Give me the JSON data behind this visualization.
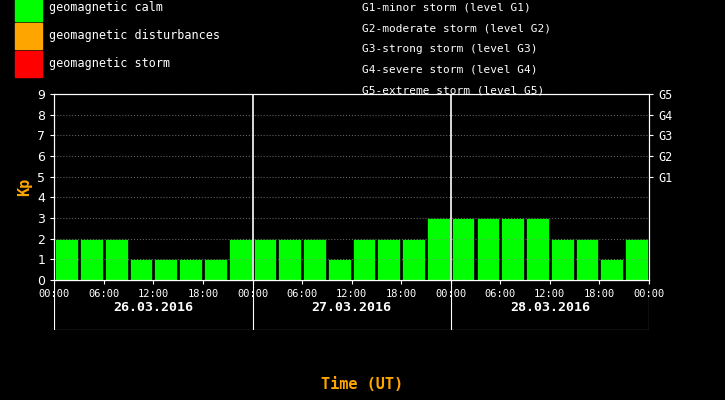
{
  "bg_color": "#000000",
  "bar_color_calm": "#00ff00",
  "bar_color_disturb": "#ffa500",
  "bar_color_storm": "#ff0000",
  "text_color": "#ffffff",
  "orange_color": "#ffa500",
  "ylabel_color": "#ffa500",
  "xlabel": "Time (UT)",
  "ylabel": "Kp",
  "ylim": [
    0,
    9
  ],
  "yticks": [
    0,
    1,
    2,
    3,
    4,
    5,
    6,
    7,
    8,
    9
  ],
  "right_labels": [
    "G1",
    "G2",
    "G3",
    "G4",
    "G5"
  ],
  "right_label_yvals": [
    5,
    6,
    7,
    8,
    9
  ],
  "dates": [
    "26.03.2016",
    "27.03.2016",
    "28.03.2016"
  ],
  "kp_values": [
    [
      2,
      2,
      2,
      1,
      1,
      1,
      1,
      2
    ],
    [
      2,
      2,
      2,
      1,
      2,
      2,
      2,
      3
    ],
    [
      3,
      3,
      3,
      3,
      2,
      2,
      1,
      2
    ]
  ],
  "legend_items": [
    {
      "label": "geomagnetic calm",
      "color": "#00ff00"
    },
    {
      "label": "geomagnetic disturbances",
      "color": "#ffa500"
    },
    {
      "label": "geomagnetic storm",
      "color": "#ff0000"
    }
  ],
  "right_legend_lines": [
    "G1-minor storm (level G1)",
    "G2-moderate storm (level G2)",
    "G3-strong storm (level G3)",
    "G4-severe storm (level G4)",
    "G5-extreme storm (level G5)"
  ],
  "xtick_labels_per_day": [
    "00:00",
    "06:00",
    "12:00",
    "18:00"
  ],
  "font_family": "monospace",
  "dot_grid_color": "#888888"
}
